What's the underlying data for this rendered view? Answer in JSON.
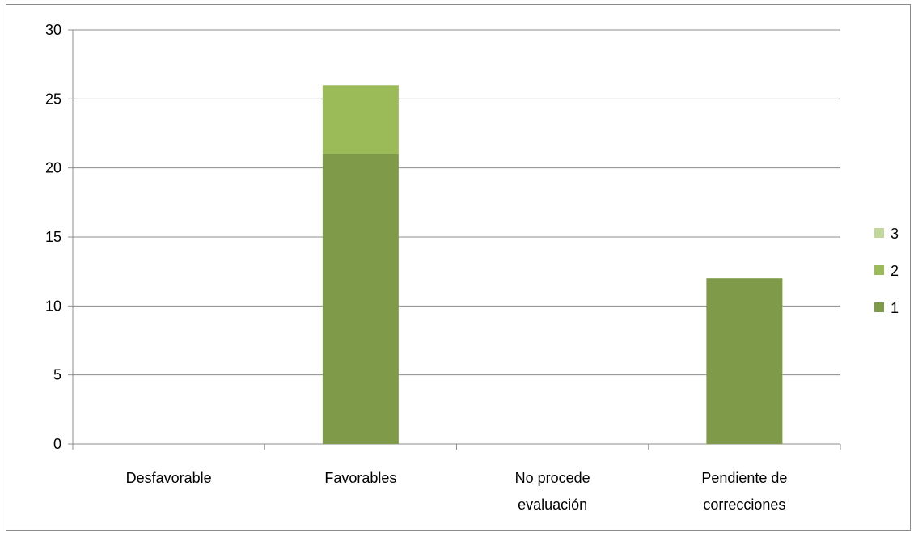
{
  "chart_data": {
    "type": "bar",
    "stacked": true,
    "categories": [
      "Desfavorable",
      "Favorables",
      "No procede evaluación",
      "Pendiente de correcciones"
    ],
    "category_lines": [
      [
        "Desfavorable"
      ],
      [
        "Favorables"
      ],
      [
        "No procede",
        "evaluación"
      ],
      [
        "Pendiente de",
        "correcciones"
      ]
    ],
    "series": [
      {
        "name": "1",
        "values": [
          0,
          21,
          0,
          12
        ],
        "color": "#7f9a48"
      },
      {
        "name": "2",
        "values": [
          0,
          5,
          0,
          0
        ],
        "color": "#9bbb59"
      },
      {
        "name": "3",
        "values": [
          0,
          0,
          0,
          0
        ],
        "color": "#c3d69b"
      }
    ],
    "yticks": [
      0,
      5,
      10,
      15,
      20,
      25,
      30
    ],
    "ylim": [
      0,
      30
    ],
    "grid": true,
    "legend_position": "right",
    "title": "",
    "xlabel": "",
    "ylabel": ""
  }
}
